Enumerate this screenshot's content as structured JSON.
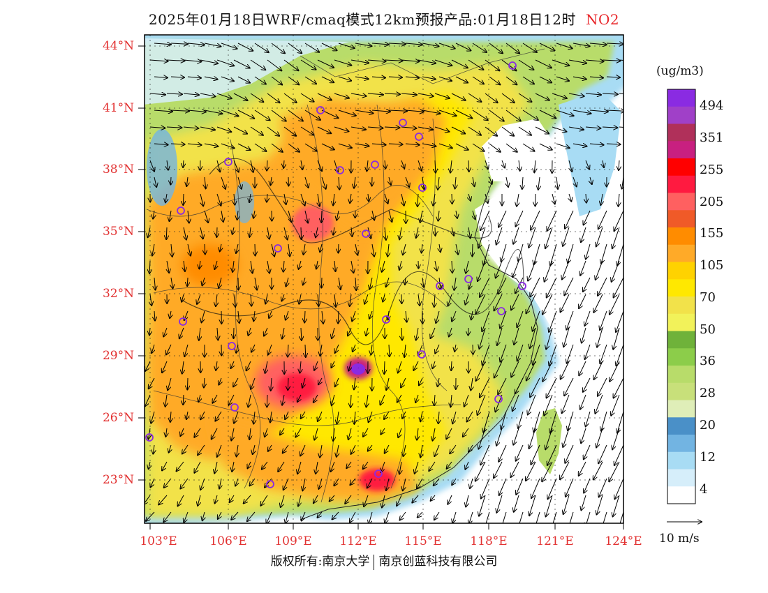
{
  "title": {
    "text": "2025年01月18日WRF/cmaq模式12km预报产品:01月18日12时",
    "pollutant": "NO2",
    "pollutant_color": "#e8262a"
  },
  "axes": {
    "lat_labels": [
      "44°N",
      "41°N",
      "38°N",
      "35°N",
      "32°N",
      "29°N",
      "26°N",
      "23°N"
    ],
    "lon_labels": [
      "103°E",
      "106°E",
      "109°E",
      "112°E",
      "115°E",
      "118°E",
      "121°E",
      "124°E"
    ]
  },
  "legend": {
    "unit": "(ug/m3)",
    "labels": [
      "494",
      "351",
      "255",
      "205",
      "155",
      "105",
      "70",
      "50",
      "36",
      "28",
      "20",
      "12",
      "4"
    ],
    "colors": [
      "#8a2be2",
      "#a040c8",
      "#b0305a",
      "#c82080",
      "#ff0000",
      "#ff1a40",
      "#ff6060",
      "#f05a28",
      "#ff8c00",
      "#ffaa28",
      "#ffd200",
      "#ffe800",
      "#f2e24a",
      "#f2f25a",
      "#6fb23a",
      "#8ccd4a",
      "#b8dc6a",
      "#c8e07a",
      "#dfeeb8",
      "#4a90c8",
      "#72b4e2",
      "#a8dcf4",
      "#d6eefa",
      "#ffffff"
    ]
  },
  "wind_reference": "10 m/s",
  "footer": {
    "left": "版权所有:南京大学",
    "right": "南京创蓝科技有限公司"
  },
  "cities": [
    "site-1",
    "site-2",
    "site-3",
    "site-4",
    "site-5",
    "site-6",
    "site-7",
    "site-8",
    "site-9",
    "site-10",
    "site-11",
    "site-12",
    "site-13",
    "site-14",
    "site-15",
    "site-16",
    "site-17",
    "site-18",
    "site-19",
    "site-20",
    "site-21",
    "site-22",
    "site-23",
    "site-24",
    "site-25"
  ]
}
